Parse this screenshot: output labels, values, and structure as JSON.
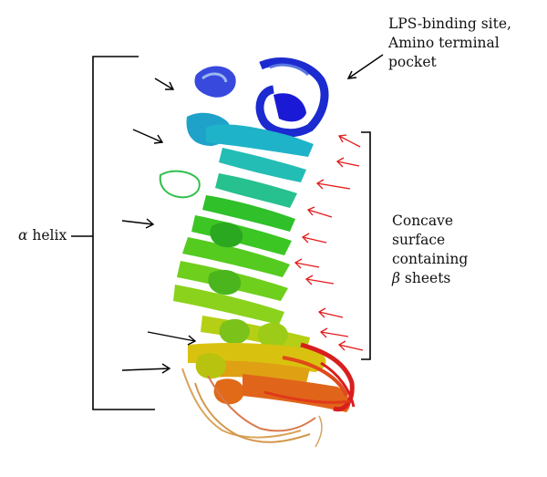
{
  "labels": {
    "lps_line1": "LPS-binding site,",
    "lps_line2": "Amino terminal",
    "lps_line3": "pocket",
    "alpha_symbol": "α",
    "alpha_word": "helix",
    "concave_line1": "Concave",
    "concave_line2": "surface",
    "concave_line3": "containing",
    "concave_symbol": "β",
    "concave_word": "sheets"
  },
  "colors": {
    "black_arrow": "#000000",
    "red_arrow": "#e31a1c",
    "bracket": "#000000",
    "protein_gradient": [
      "#1a1ad6",
      "#1fb3c9",
      "#2fc02a",
      "#8bd21c",
      "#d9c20f",
      "#e0651a",
      "#d91e1e"
    ]
  }
}
